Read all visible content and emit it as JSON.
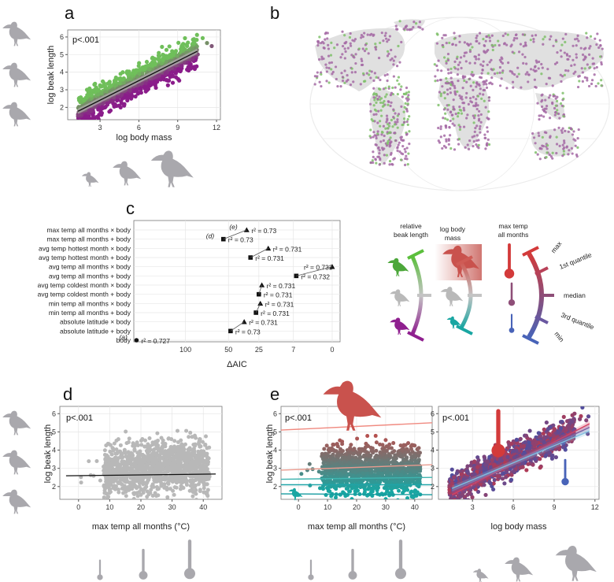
{
  "colors": {
    "green": "#6fbf5a",
    "purple": "#8a1c8a",
    "grey_point": "#b8b8b8",
    "bird_grey": "#a9a8ad",
    "red": "#c93f3f",
    "blue": "#4b5fb0",
    "teal": "#1aa7a0",
    "map_land": "#e0e0e0",
    "frame": "#555555"
  },
  "icons": {
    "bird": "bird-silhouette-icon",
    "thermometer": "thermometer-icon"
  },
  "panels": {
    "a": {
      "letter": "a"
    },
    "b": {
      "letter": "b"
    },
    "c": {
      "letter": "c"
    },
    "d": {
      "letter": "d"
    },
    "e": {
      "letter": "e"
    }
  },
  "legend": {
    "beak_title_1": "relative",
    "beak_title_2": "beak length",
    "mass_title_1": "log  body",
    "mass_title_2": "mass",
    "temp_title_1": "max temp",
    "temp_title_2": "all months",
    "max_label": "max",
    "q1_label": "1st quantile",
    "median_label": "median",
    "q3_label": "3rd quantile",
    "min_label": "min"
  },
  "chart_data": [
    {
      "id": "a",
      "type": "scatter",
      "title": "",
      "xlabel": "log body mass",
      "ylabel": "log beak length",
      "xlim": [
        0.5,
        12.3
      ],
      "ylim": [
        1.3,
        6.4
      ],
      "xticks": [
        3,
        6,
        9,
        12
      ],
      "yticks": [
        2,
        3,
        4,
        5,
        6
      ],
      "annotation": "p<.001",
      "color_by": "relative beak length (green = long, purple = short)",
      "regression": {
        "slope": 0.37,
        "intercept": 1.3
      }
    },
    {
      "id": "b",
      "type": "scatter",
      "title": "",
      "description_kind": "map of species occurrence points colored by relative beak length",
      "points_color_by": "relative beak length"
    },
    {
      "id": "c",
      "type": "scatter",
      "xlabel": "ΔAIC",
      "xticks": [
        100,
        50,
        25,
        7,
        0
      ],
      "xlim_sqrt": [
        180,
        0
      ],
      "rows": [
        {
          "label": "max temp all months × body",
          "aic": 34,
          "marker": "triangle",
          "r2": "r² = 0.73",
          "tag": "(e)"
        },
        {
          "label": "max temp all months + body",
          "aic": 55,
          "marker": "square",
          "r2": "r² = 0.73",
          "tag": "(d)"
        },
        {
          "label": "avg temp hottest month × body",
          "aic": 19,
          "marker": "triangle",
          "r2": "r² = 0.731",
          "tag": ""
        },
        {
          "label": "avg temp hottest month + body",
          "aic": 31,
          "marker": "square",
          "r2": "r² = 0.731",
          "tag": ""
        },
        {
          "label": "avg temp all months × body",
          "aic": 0,
          "marker": "triangle",
          "r2": "r² = 0.733",
          "tag": ""
        },
        {
          "label": "avg temp all months + body",
          "aic": 6,
          "marker": "square",
          "r2": "r² = 0.732",
          "tag": ""
        },
        {
          "label": "avg temp coldest month × body",
          "aic": 23,
          "marker": "triangle",
          "r2": "r² = 0.731",
          "tag": ""
        },
        {
          "label": "avg temp coldest month + body",
          "aic": 25,
          "marker": "square",
          "r2": "r² = 0.731",
          "tag": ""
        },
        {
          "label": "min temp all months × body",
          "aic": 24,
          "marker": "triangle",
          "r2": "r² = 0.731",
          "tag": ""
        },
        {
          "label": "min temp all months + body",
          "aic": 27,
          "marker": "square",
          "r2": "r² = 0.731",
          "tag": ""
        },
        {
          "label": "absolute latitude × body",
          "aic": 36,
          "marker": "triangle",
          "r2": "r² = 0.731",
          "tag": ""
        },
        {
          "label": "absolute latitude + body",
          "aic": 48,
          "marker": "square",
          "r2": "r² = 0.73",
          "tag": ""
        },
        {
          "label": "body",
          "aic": 178,
          "marker": "circle",
          "r2": "r² = 0.727",
          "tag": "(a)"
        }
      ]
    },
    {
      "id": "d",
      "type": "scatter",
      "xlabel": "max temp all months (°C)",
      "ylabel": "log beak length",
      "xlim": [
        -6,
        46
      ],
      "ylim": [
        1.3,
        6.4
      ],
      "xticks": [
        0,
        10,
        20,
        30,
        40
      ],
      "yticks": [
        2,
        3,
        4,
        5,
        6
      ],
      "annotation": "p<.001",
      "regression": {
        "slope": 0.002,
        "intercept": 2.6
      }
    },
    {
      "id": "e_temp",
      "type": "scatter",
      "xlabel": "max temp all months (°C)",
      "ylabel": "log beak length",
      "xlim": [
        -6,
        46
      ],
      "ylim": [
        1.3,
        6.4
      ],
      "xticks": [
        0,
        10,
        20,
        30,
        40
      ],
      "yticks": [
        2,
        3,
        4,
        5,
        6
      ],
      "annotation": "p<.001",
      "series": [
        {
          "name": "max body mass",
          "y0": 5.1,
          "y1": 5.5,
          "color": "#f08a80"
        },
        {
          "name": "1st quantile",
          "y0": 2.9,
          "y1": 3.2,
          "color": "#e89a8e"
        },
        {
          "name": "median",
          "y0": 2.4,
          "y1": 2.5,
          "color": "#40b4b0"
        },
        {
          "name": "3rd quantile",
          "y0": 2.1,
          "y1": 2.1,
          "color": "#20a4a8"
        },
        {
          "name": "min body mass",
          "y0": 1.6,
          "y1": 1.55,
          "color": "#169ba0"
        }
      ]
    },
    {
      "id": "e_mass",
      "type": "scatter",
      "xlabel": "log body mass",
      "ylabel": "",
      "xlim": [
        0.5,
        12.3
      ],
      "ylim": [
        1.3,
        6.4
      ],
      "xticks": [
        3,
        6,
        9,
        12
      ],
      "yticks": [
        2,
        3,
        4,
        5,
        6
      ],
      "annotation": "p<.001",
      "series": [
        {
          "name": "max temp",
          "x0": 1.5,
          "y0": 1.55,
          "x1": 11.6,
          "y1": 5.45,
          "color": "#d94060"
        },
        {
          "name": "median temp",
          "x0": 1.5,
          "y0": 1.75,
          "x1": 11.6,
          "y1": 5.25,
          "color": "#7a5ca0"
        },
        {
          "name": "min temp",
          "x0": 1.5,
          "y0": 1.9,
          "x1": 11.6,
          "y1": 5.05,
          "color": "#80c0e0"
        }
      ]
    }
  ]
}
